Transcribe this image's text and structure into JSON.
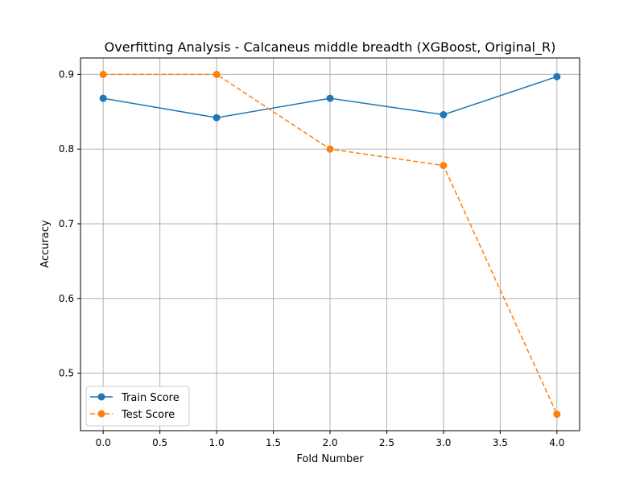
{
  "chart_data": {
    "type": "line",
    "title": "Overfitting Analysis - Calcaneus middle breadth (XGBoost, Original_R)",
    "xlabel": "Fold Number",
    "ylabel": "Accuracy",
    "xlim": [
      -0.2,
      4.2
    ],
    "ylim": [
      0.423,
      0.922
    ],
    "xticks": [
      0.0,
      0.5,
      1.0,
      1.5,
      2.0,
      2.5,
      3.0,
      3.5,
      4.0
    ],
    "xtick_labels": [
      "0.0",
      "0.5",
      "1.0",
      "1.5",
      "2.0",
      "2.5",
      "3.0",
      "3.5",
      "4.0"
    ],
    "yticks": [
      0.5,
      0.6,
      0.7,
      0.8,
      0.9
    ],
    "ytick_labels": [
      "0.5",
      "0.6",
      "0.7",
      "0.8",
      "0.9"
    ],
    "grid": true,
    "legend_position": "lower-left",
    "series": [
      {
        "name": "Train Score",
        "x": [
          0,
          1,
          2,
          3,
          4
        ],
        "values": [
          0.868,
          0.842,
          0.868,
          0.846,
          0.897
        ],
        "color": "#1f77b4",
        "linestyle": "solid",
        "marker": "circle"
      },
      {
        "name": "Test Score",
        "x": [
          0,
          1,
          2,
          3,
          4
        ],
        "values": [
          0.9,
          0.9,
          0.8,
          0.778,
          0.445
        ],
        "color": "#ff7f0e",
        "linestyle": "dashed",
        "marker": "circle"
      }
    ]
  }
}
